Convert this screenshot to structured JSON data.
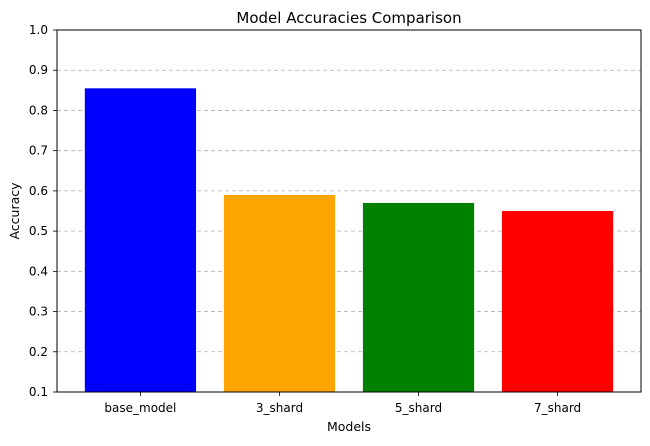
{
  "chart_data": {
    "type": "bar",
    "title": "Model Accuracies Comparison",
    "xlabel": "Models",
    "ylabel": "Accuracy",
    "categories": [
      "base_model",
      "3_shard",
      "5_shard",
      "7_shard"
    ],
    "values": [
      0.855,
      0.59,
      0.57,
      0.55
    ],
    "colors": [
      "#0000ff",
      "#ffa500",
      "#008000",
      "#ff0000"
    ],
    "ylim": [
      0.1,
      1.0
    ],
    "yticks": [
      "0.1",
      "0.2",
      "0.3",
      "0.4",
      "0.5",
      "0.6",
      "0.7",
      "0.8",
      "0.9",
      "1.0"
    ],
    "grid": "y-dashed"
  }
}
